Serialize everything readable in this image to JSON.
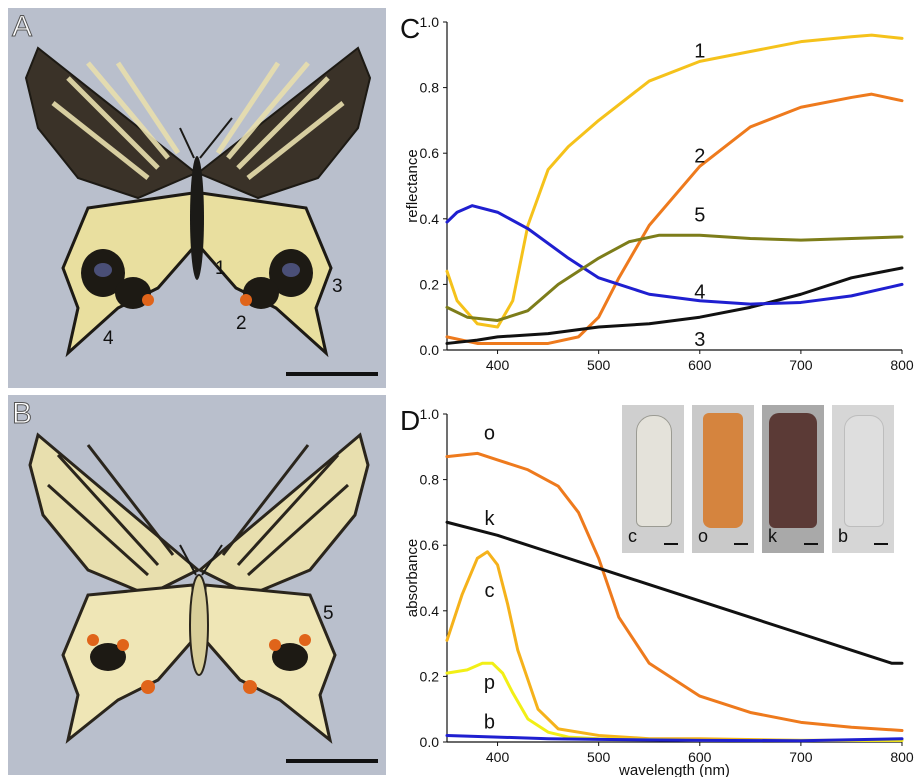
{
  "panels": {
    "A": {
      "label": "A",
      "callouts": [
        "1",
        "2",
        "3",
        "4"
      ]
    },
    "B": {
      "label": "B",
      "callouts": [
        "5"
      ]
    },
    "C": {
      "label": "C"
    },
    "D": {
      "label": "D"
    }
  },
  "inset": {
    "tiles": [
      "c",
      "o",
      "k",
      "b"
    ]
  },
  "colors": {
    "photo_bg": "#b9bfcc",
    "yellow": "#f5c21b",
    "orange": "#ee7a1d",
    "blue": "#1f1fd0",
    "olive": "#7d7d1a",
    "black": "#111111",
    "bright_yellow": "#f2ef16"
  },
  "chart_data": [
    {
      "type": "line",
      "panel": "C",
      "title": "",
      "xlabel": "",
      "ylabel": "reflectance",
      "xlim": [
        350,
        800
      ],
      "ylim": [
        0,
        1.0
      ],
      "xticks": [
        400,
        500,
        600,
        700,
        800
      ],
      "yticks": [
        "0.0",
        "0.2",
        "0.4",
        "0.6",
        "0.8",
        "1.0"
      ],
      "ytick_values": [
        0,
        0.2,
        0.4,
        0.6,
        0.8,
        1.0
      ],
      "series": [
        {
          "name": "1",
          "color": "#f5c21b",
          "x": [
            350,
            360,
            380,
            400,
            415,
            430,
            450,
            470,
            500,
            550,
            600,
            650,
            700,
            750,
            770,
            800
          ],
          "y": [
            0.24,
            0.15,
            0.08,
            0.07,
            0.15,
            0.38,
            0.55,
            0.62,
            0.7,
            0.82,
            0.88,
            0.91,
            0.94,
            0.955,
            0.96,
            0.95
          ]
        },
        {
          "name": "2",
          "color": "#ee7a1d",
          "x": [
            350,
            380,
            400,
            450,
            480,
            500,
            520,
            550,
            600,
            650,
            700,
            750,
            770,
            800
          ],
          "y": [
            0.04,
            0.02,
            0.02,
            0.02,
            0.04,
            0.1,
            0.22,
            0.38,
            0.56,
            0.68,
            0.74,
            0.77,
            0.78,
            0.76
          ]
        },
        {
          "name": "3",
          "color": "#111111",
          "x": [
            350,
            380,
            400,
            450,
            500,
            550,
            600,
            650,
            700,
            750,
            800
          ],
          "y": [
            0.02,
            0.03,
            0.04,
            0.05,
            0.07,
            0.08,
            0.1,
            0.13,
            0.17,
            0.22,
            0.25
          ]
        },
        {
          "name": "4",
          "color": "#1f1fd0",
          "x": [
            350,
            360,
            375,
            400,
            430,
            470,
            500,
            550,
            600,
            650,
            700,
            750,
            800
          ],
          "y": [
            0.39,
            0.42,
            0.44,
            0.42,
            0.37,
            0.28,
            0.22,
            0.17,
            0.15,
            0.14,
            0.145,
            0.165,
            0.2
          ]
        },
        {
          "name": "5",
          "color": "#7d7d1a",
          "x": [
            350,
            370,
            400,
            430,
            460,
            500,
            530,
            560,
            600,
            650,
            700,
            750,
            800
          ],
          "y": [
            0.13,
            0.1,
            0.09,
            0.12,
            0.2,
            0.28,
            0.33,
            0.35,
            0.35,
            0.34,
            0.335,
            0.34,
            0.345
          ]
        }
      ],
      "annotations": [
        {
          "text": "1",
          "x": 600,
          "y": 0.91
        },
        {
          "text": "2",
          "x": 600,
          "y": 0.59
        },
        {
          "text": "5",
          "x": 600,
          "y": 0.41
        },
        {
          "text": "4",
          "x": 600,
          "y": 0.175
        },
        {
          "text": "3",
          "x": 600,
          "y": 0.03
        }
      ]
    },
    {
      "type": "line",
      "panel": "D",
      "title": "",
      "xlabel": "wavelength (nm)",
      "ylabel": "absorbance",
      "xlim": [
        350,
        800
      ],
      "ylim": [
        0,
        1.0
      ],
      "xticks": [
        400,
        500,
        600,
        700,
        800
      ],
      "yticks": [
        "0.0",
        "0.2",
        "0.4",
        "0.6",
        "0.8",
        "1.0"
      ],
      "ytick_values": [
        0,
        0.2,
        0.4,
        0.6,
        0.8,
        1.0
      ],
      "series": [
        {
          "name": "o",
          "color": "#ee7a1d",
          "x": [
            350,
            380,
            400,
            430,
            460,
            480,
            500,
            520,
            550,
            600,
            650,
            700,
            750,
            800
          ],
          "y": [
            0.87,
            0.88,
            0.86,
            0.83,
            0.78,
            0.7,
            0.56,
            0.38,
            0.24,
            0.14,
            0.09,
            0.06,
            0.045,
            0.035
          ]
        },
        {
          "name": "k",
          "color": "#111111",
          "x": [
            350,
            400,
            450,
            500,
            550,
            600,
            650,
            700,
            750,
            790,
            800
          ],
          "y": [
            0.67,
            0.63,
            0.58,
            0.53,
            0.48,
            0.43,
            0.38,
            0.33,
            0.28,
            0.24,
            0.24
          ]
        },
        {
          "name": "c",
          "color": "#f5b21b",
          "x": [
            350,
            365,
            380,
            390,
            400,
            410,
            420,
            440,
            460,
            500,
            550,
            600,
            700,
            800
          ],
          "y": [
            0.31,
            0.45,
            0.56,
            0.58,
            0.54,
            0.42,
            0.28,
            0.1,
            0.04,
            0.02,
            0.01,
            0.01,
            0.005,
            0.005
          ]
        },
        {
          "name": "p",
          "color": "#f2ef16",
          "x": [
            350,
            370,
            385,
            395,
            405,
            415,
            430,
            450,
            470,
            500,
            600,
            700,
            800
          ],
          "y": [
            0.21,
            0.22,
            0.24,
            0.24,
            0.21,
            0.15,
            0.07,
            0.03,
            0.015,
            0.01,
            0.005,
            0.005,
            0.005
          ]
        },
        {
          "name": "b",
          "color": "#1f1fd0",
          "x": [
            350,
            400,
            450,
            500,
            600,
            700,
            800
          ],
          "y": [
            0.02,
            0.015,
            0.01,
            0.008,
            0.005,
            0.004,
            0.01
          ]
        }
      ],
      "annotations": [
        {
          "text": "o",
          "x": 392,
          "y": 0.94
        },
        {
          "text": "k",
          "x": 392,
          "y": 0.68
        },
        {
          "text": "c",
          "x": 392,
          "y": 0.46
        },
        {
          "text": "p",
          "x": 392,
          "y": 0.18
        },
        {
          "text": "b",
          "x": 392,
          "y": 0.06
        }
      ]
    }
  ]
}
